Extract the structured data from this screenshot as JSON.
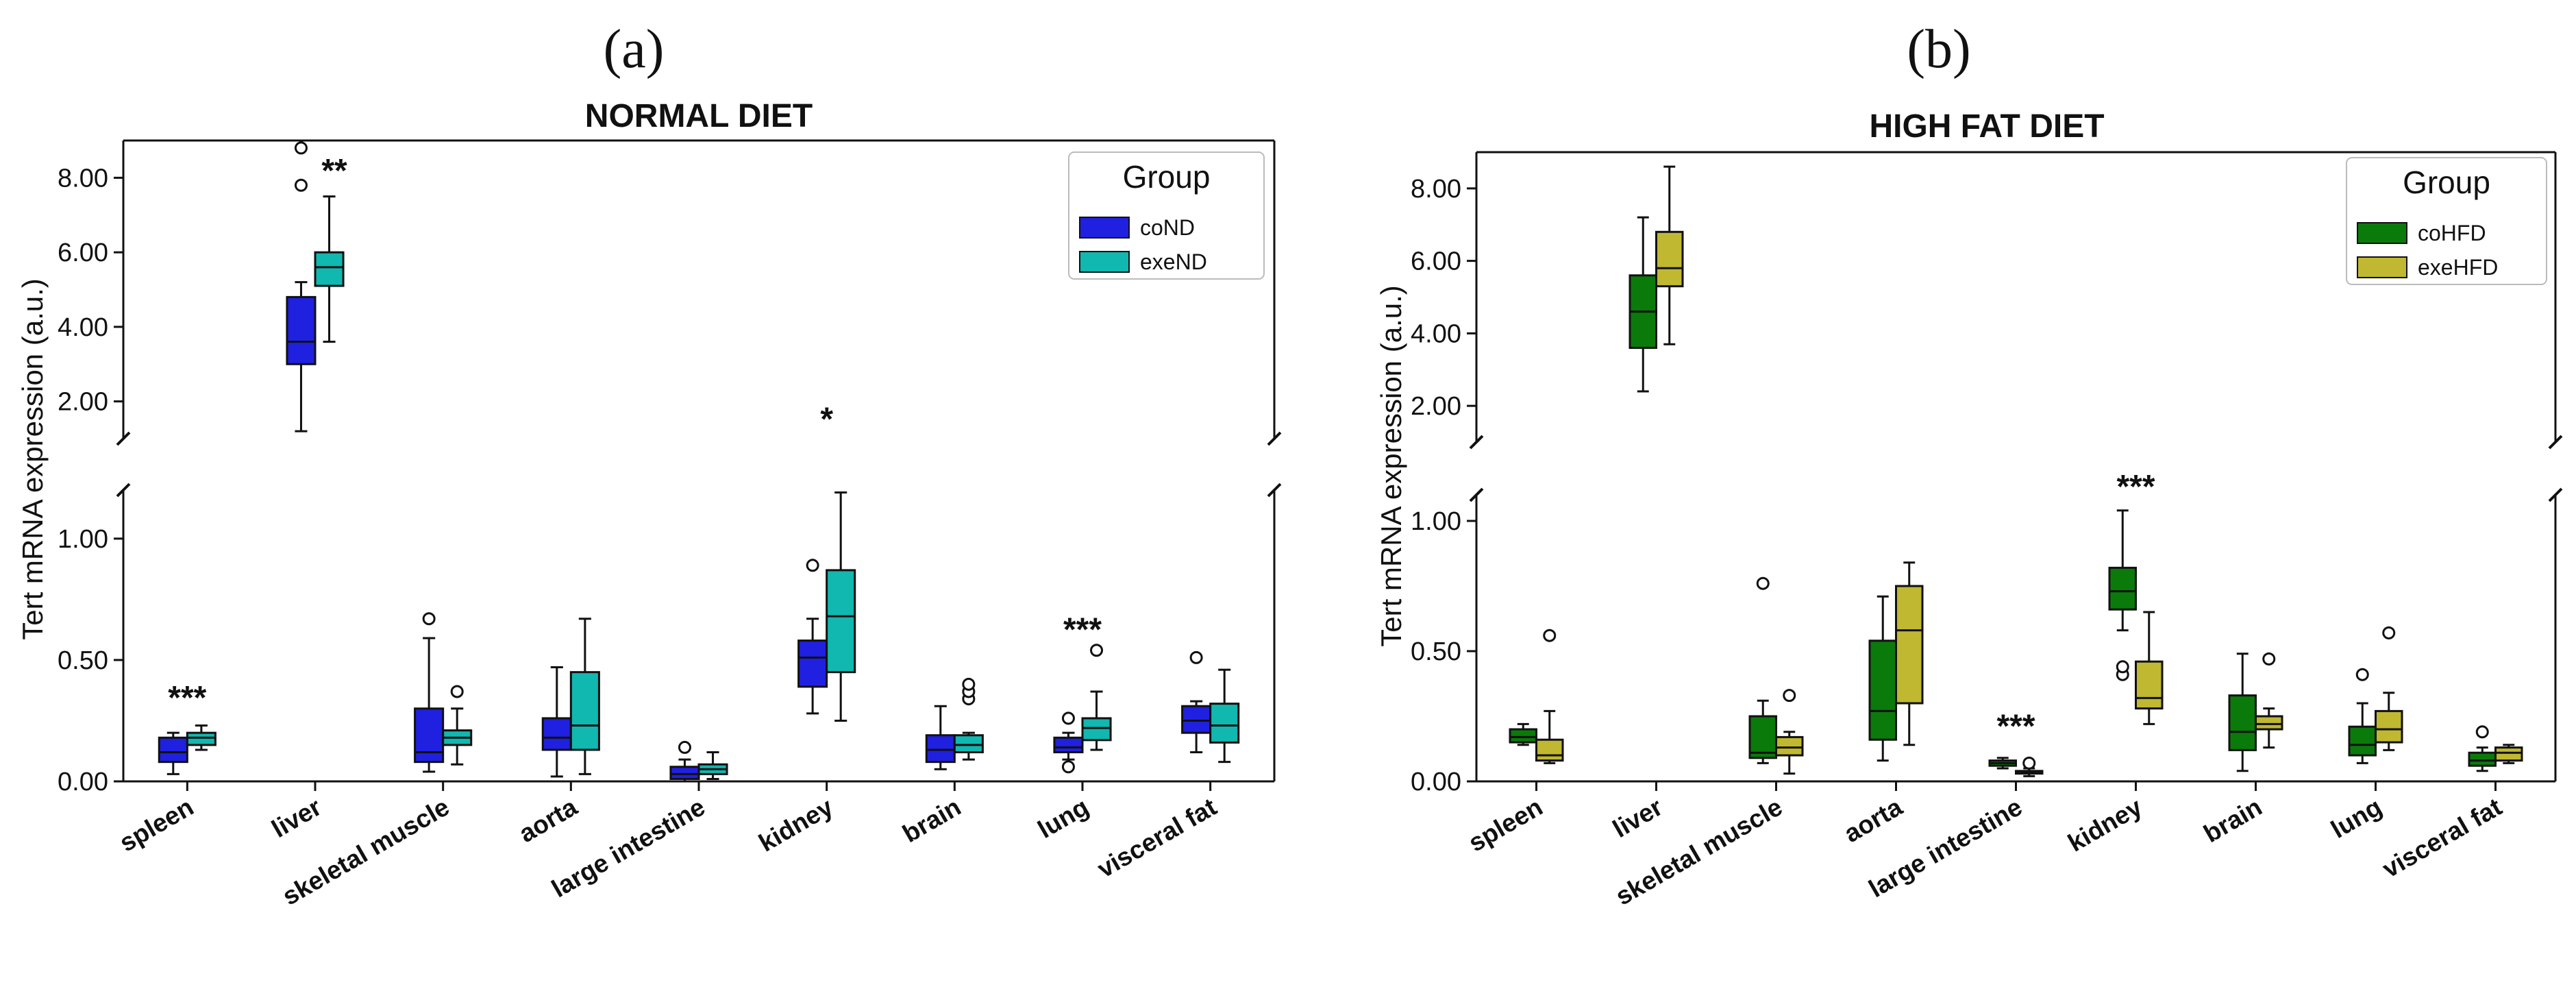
{
  "panels": [
    {
      "label": "(a)",
      "chart_index": 0
    },
    {
      "label": "(b)",
      "chart_index": 1
    }
  ],
  "chart_data": [
    {
      "type": "boxplot",
      "title": "NORMAL DIET",
      "ylabel": "Tert mRNA expression (a.u.)",
      "xlabel": "",
      "y_axis_break": true,
      "upper_ylim": [
        1.0,
        9.0
      ],
      "upper_ticks": [
        "2.00",
        "4.00",
        "6.00",
        "8.00"
      ],
      "lower_ylim": [
        0.0,
        1.2
      ],
      "lower_ticks": [
        "0.00",
        "0.50",
        "1.00"
      ],
      "legend": {
        "title": "Group",
        "position": "top-right"
      },
      "categories": [
        "spleen",
        "liver",
        "skeletal muscle",
        "aorta",
        "large intestine",
        "kidney",
        "brain",
        "lung",
        "visceral fat"
      ],
      "series": [
        {
          "name": "coND",
          "color": "#2020e0",
          "boxes": [
            {
              "min": 0.03,
              "q1": 0.08,
              "median": 0.12,
              "q3": 0.18,
              "max": 0.2,
              "outliers": []
            },
            {
              "min": 1.2,
              "q1": 3.0,
              "median": 3.6,
              "q3": 4.8,
              "max": 5.2,
              "outliers": [
                7.8,
                8.8
              ]
            },
            {
              "min": 0.04,
              "q1": 0.08,
              "median": 0.12,
              "q3": 0.3,
              "max": 0.59,
              "outliers": [
                0.67
              ]
            },
            {
              "min": 0.02,
              "q1": 0.13,
              "median": 0.18,
              "q3": 0.26,
              "max": 0.47,
              "outliers": []
            },
            {
              "min": 0.0,
              "q1": 0.01,
              "median": 0.03,
              "q3": 0.06,
              "max": 0.09,
              "outliers": [
                0.14
              ]
            },
            {
              "min": 0.28,
              "q1": 0.39,
              "median": 0.51,
              "q3": 0.58,
              "max": 0.67,
              "outliers": [
                0.89
              ]
            },
            {
              "min": 0.05,
              "q1": 0.08,
              "median": 0.13,
              "q3": 0.19,
              "max": 0.31,
              "outliers": []
            },
            {
              "min": 0.09,
              "q1": 0.12,
              "median": 0.14,
              "q3": 0.18,
              "max": 0.2,
              "outliers": [
                0.06,
                0.26
              ]
            },
            {
              "min": 0.12,
              "q1": 0.2,
              "median": 0.25,
              "q3": 0.31,
              "max": 0.33,
              "outliers": [
                0.51
              ]
            }
          ]
        },
        {
          "name": "exeND",
          "color": "#10b8b0",
          "boxes": [
            {
              "min": 0.13,
              "q1": 0.15,
              "median": 0.18,
              "q3": 0.2,
              "max": 0.23,
              "outliers": []
            },
            {
              "min": 3.6,
              "q1": 5.1,
              "median": 5.6,
              "q3": 6.0,
              "max": 7.5,
              "outliers": []
            },
            {
              "min": 0.07,
              "q1": 0.15,
              "median": 0.18,
              "q3": 0.21,
              "max": 0.3,
              "outliers": [
                0.37
              ]
            },
            {
              "min": 0.03,
              "q1": 0.13,
              "median": 0.23,
              "q3": 0.45,
              "max": 0.67,
              "outliers": []
            },
            {
              "min": 0.01,
              "q1": 0.03,
              "median": 0.05,
              "q3": 0.07,
              "max": 0.12,
              "outliers": []
            },
            {
              "min": 0.25,
              "q1": 0.45,
              "median": 0.68,
              "q3": 0.87,
              "max": 1.19,
              "outliers": []
            },
            {
              "min": 0.09,
              "q1": 0.12,
              "median": 0.15,
              "q3": 0.19,
              "max": 0.2,
              "outliers": [
                0.34,
                0.37,
                0.4
              ]
            },
            {
              "min": 0.13,
              "q1": 0.17,
              "median": 0.22,
              "q3": 0.26,
              "max": 0.37,
              "outliers": [
                0.54
              ]
            },
            {
              "min": 0.08,
              "q1": 0.16,
              "median": 0.23,
              "q3": 0.32,
              "max": 0.46,
              "outliers": []
            }
          ]
        }
      ],
      "annotations": [
        {
          "category": "spleen",
          "text": "***",
          "y": 0.3
        },
        {
          "category": "liver",
          "text": "**",
          "y": 7.9
        },
        {
          "category": "kidney",
          "text": "*",
          "y": 1.23
        },
        {
          "category": "lung",
          "text": "***",
          "y": 0.58
        }
      ]
    },
    {
      "type": "boxplot",
      "title": "HIGH FAT DIET",
      "ylabel": "Tert mRNA expression (a.u.)",
      "xlabel": "",
      "y_axis_break": true,
      "upper_ylim": [
        1.0,
        9.0
      ],
      "upper_ticks": [
        "2.00",
        "4.00",
        "6.00",
        "8.00"
      ],
      "lower_ylim": [
        0.0,
        1.1
      ],
      "lower_ticks": [
        "0.00",
        "0.50",
        "1.00"
      ],
      "legend": {
        "title": "Group",
        "position": "top-right"
      },
      "categories": [
        "spleen",
        "liver",
        "skeletal muscle",
        "aorta",
        "large intestine",
        "kidney",
        "brain",
        "lung",
        "visceral fat"
      ],
      "series": [
        {
          "name": "coHFD",
          "color": "#0a7a0a",
          "boxes": [
            {
              "min": 0.14,
              "q1": 0.15,
              "median": 0.17,
              "q3": 0.2,
              "max": 0.22,
              "outliers": []
            },
            {
              "min": 2.4,
              "q1": 3.6,
              "median": 4.6,
              "q3": 5.6,
              "max": 7.2,
              "outliers": []
            },
            {
              "min": 0.07,
              "q1": 0.09,
              "median": 0.11,
              "q3": 0.25,
              "max": 0.31,
              "outliers": [
                0.76
              ]
            },
            {
              "min": 0.08,
              "q1": 0.16,
              "median": 0.27,
              "q3": 0.54,
              "max": 0.71,
              "outliers": []
            },
            {
              "min": 0.05,
              "q1": 0.06,
              "median": 0.07,
              "q3": 0.08,
              "max": 0.09,
              "outliers": []
            },
            {
              "min": 0.58,
              "q1": 0.66,
              "median": 0.73,
              "q3": 0.82,
              "max": 1.04,
              "outliers": [
                0.41,
                0.44
              ]
            },
            {
              "min": 0.04,
              "q1": 0.12,
              "median": 0.19,
              "q3": 0.33,
              "max": 0.49,
              "outliers": []
            },
            {
              "min": 0.07,
              "q1": 0.1,
              "median": 0.14,
              "q3": 0.21,
              "max": 0.3,
              "outliers": [
                0.41
              ]
            },
            {
              "min": 0.04,
              "q1": 0.06,
              "median": 0.08,
              "q3": 0.11,
              "max": 0.13,
              "outliers": [
                0.19
              ]
            }
          ]
        },
        {
          "name": "exeHFD",
          "color": "#c0b830",
          "boxes": [
            {
              "min": 0.07,
              "q1": 0.08,
              "median": 0.1,
              "q3": 0.16,
              "max": 0.27,
              "outliers": [
                0.56
              ]
            },
            {
              "min": 3.7,
              "q1": 5.3,
              "median": 5.8,
              "q3": 6.8,
              "max": 8.6,
              "outliers": []
            },
            {
              "min": 0.03,
              "q1": 0.1,
              "median": 0.13,
              "q3": 0.17,
              "max": 0.19,
              "outliers": [
                0.33
              ]
            },
            {
              "min": 0.14,
              "q1": 0.3,
              "median": 0.58,
              "q3": 0.75,
              "max": 0.84,
              "outliers": []
            },
            {
              "min": 0.02,
              "q1": 0.03,
              "median": 0.035,
              "q3": 0.04,
              "max": 0.05,
              "outliers": [
                0.07
              ]
            },
            {
              "min": 0.22,
              "q1": 0.28,
              "median": 0.32,
              "q3": 0.46,
              "max": 0.65,
              "outliers": []
            },
            {
              "min": 0.13,
              "q1": 0.2,
              "median": 0.22,
              "q3": 0.25,
              "max": 0.28,
              "outliers": [
                0.47
              ]
            },
            {
              "min": 0.12,
              "q1": 0.15,
              "median": 0.2,
              "q3": 0.27,
              "max": 0.34,
              "outliers": [
                0.57
              ]
            },
            {
              "min": 0.07,
              "q1": 0.08,
              "median": 0.11,
              "q3": 0.13,
              "max": 0.14,
              "outliers": []
            }
          ]
        }
      ],
      "annotations": [
        {
          "category": "large intestine",
          "text": "***",
          "y": 0.17
        },
        {
          "category": "kidney",
          "text": "***",
          "y": 1.09
        }
      ]
    }
  ]
}
